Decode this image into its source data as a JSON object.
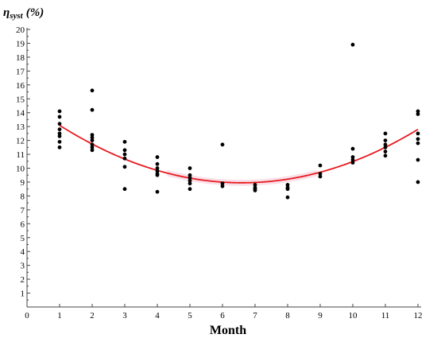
{
  "chart_data": {
    "type": "scatter",
    "title": "",
    "xlabel": "Month",
    "ylabel_main": "η",
    "ylabel_sub": "syst",
    "ylabel_unit": "(%)",
    "xlim": [
      0,
      12
    ],
    "ylim": [
      0,
      20
    ],
    "x_ticks": [
      0,
      1,
      2,
      3,
      4,
      5,
      6,
      7,
      8,
      9,
      10,
      11,
      12
    ],
    "y_ticks": [
      1,
      2,
      3,
      4,
      5,
      6,
      7,
      8,
      9,
      10,
      11,
      12,
      13,
      14,
      15,
      16,
      17,
      18,
      19,
      20
    ],
    "grid": false,
    "colors": {
      "points": "#000000",
      "fit": "#e8191e",
      "band": "#f4c6d6"
    },
    "points": [
      {
        "x": 1,
        "y": 14.1
      },
      {
        "x": 1,
        "y": 13.7
      },
      {
        "x": 1,
        "y": 13.2
      },
      {
        "x": 1,
        "y": 12.8
      },
      {
        "x": 1,
        "y": 12.5
      },
      {
        "x": 1,
        "y": 12.3
      },
      {
        "x": 1,
        "y": 11.9
      },
      {
        "x": 1,
        "y": 11.5
      },
      {
        "x": 2,
        "y": 15.6
      },
      {
        "x": 2,
        "y": 14.2
      },
      {
        "x": 2,
        "y": 12.4
      },
      {
        "x": 2,
        "y": 12.2
      },
      {
        "x": 2,
        "y": 12.0
      },
      {
        "x": 2,
        "y": 11.7
      },
      {
        "x": 2,
        "y": 11.5
      },
      {
        "x": 2,
        "y": 11.3
      },
      {
        "x": 3,
        "y": 11.9
      },
      {
        "x": 3,
        "y": 11.3
      },
      {
        "x": 3,
        "y": 11.0
      },
      {
        "x": 3,
        "y": 10.7
      },
      {
        "x": 3,
        "y": 10.1
      },
      {
        "x": 3,
        "y": 8.5
      },
      {
        "x": 4,
        "y": 10.8
      },
      {
        "x": 4,
        "y": 10.3
      },
      {
        "x": 4,
        "y": 10.0
      },
      {
        "x": 4,
        "y": 9.8
      },
      {
        "x": 4,
        "y": 9.6
      },
      {
        "x": 4,
        "y": 9.5
      },
      {
        "x": 4,
        "y": 8.3
      },
      {
        "x": 5,
        "y": 10.0
      },
      {
        "x": 5,
        "y": 9.5
      },
      {
        "x": 5,
        "y": 9.3
      },
      {
        "x": 5,
        "y": 9.1
      },
      {
        "x": 5,
        "y": 8.9
      },
      {
        "x": 5,
        "y": 8.5
      },
      {
        "x": 6,
        "y": 11.7
      },
      {
        "x": 6,
        "y": 8.9
      },
      {
        "x": 6,
        "y": 8.7
      },
      {
        "x": 7,
        "y": 8.8
      },
      {
        "x": 7,
        "y": 8.6
      },
      {
        "x": 7,
        "y": 8.5
      },
      {
        "x": 7,
        "y": 8.4
      },
      {
        "x": 8,
        "y": 8.8
      },
      {
        "x": 8,
        "y": 8.6
      },
      {
        "x": 8,
        "y": 8.5
      },
      {
        "x": 8,
        "y": 7.9
      },
      {
        "x": 9,
        "y": 10.2
      },
      {
        "x": 9,
        "y": 9.6
      },
      {
        "x": 9,
        "y": 9.4
      },
      {
        "x": 10,
        "y": 18.9
      },
      {
        "x": 10,
        "y": 11.4
      },
      {
        "x": 10,
        "y": 10.8
      },
      {
        "x": 10,
        "y": 10.6
      },
      {
        "x": 10,
        "y": 10.4
      },
      {
        "x": 11,
        "y": 12.5
      },
      {
        "x": 11,
        "y": 12.0
      },
      {
        "x": 11,
        "y": 11.7
      },
      {
        "x": 11,
        "y": 11.5
      },
      {
        "x": 11,
        "y": 11.2
      },
      {
        "x": 11,
        "y": 10.9
      },
      {
        "x": 12,
        "y": 14.1
      },
      {
        "x": 12,
        "y": 13.9
      },
      {
        "x": 12,
        "y": 12.5
      },
      {
        "x": 12,
        "y": 12.1
      },
      {
        "x": 12,
        "y": 11.8
      },
      {
        "x": 12,
        "y": 10.6
      },
      {
        "x": 12,
        "y": 9.0
      }
    ],
    "fit_curve": {
      "type": "quadratic",
      "x_range": [
        1,
        12
      ],
      "vertex": {
        "x": 6.6,
        "y": 8.95
      },
      "a": 0.132
    }
  }
}
